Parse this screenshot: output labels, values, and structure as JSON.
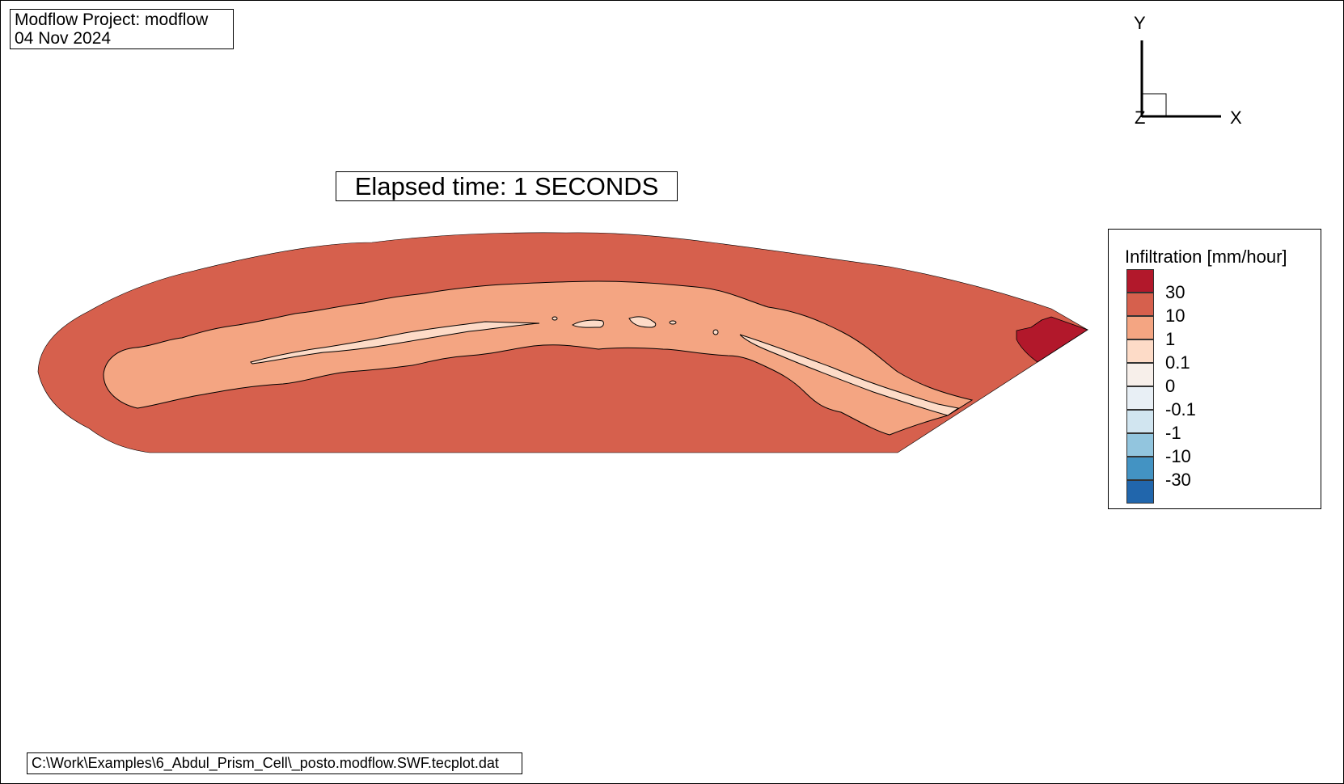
{
  "header": {
    "project": "Modflow Project: modflow",
    "date": "04 Nov 2024"
  },
  "elapsed_time": "Elapsed time: 1 SECONDS",
  "file_path": "C:\\Work\\Examples\\6_Abdul_Prism_Cell\\_posto.modflow.SWF.tecplot.dat",
  "axes": {
    "x": "X",
    "y": "Y",
    "z": "Z"
  },
  "legend": {
    "title": "Infiltration [mm/hour]",
    "levels": [
      {
        "label": "30",
        "color": "#b2182b"
      },
      {
        "label": "10",
        "color": "#d6604d"
      },
      {
        "label": "1",
        "color": "#f4a582"
      },
      {
        "label": "0.1",
        "color": "#fddbc7"
      },
      {
        "label": "0",
        "color": "#f7efea"
      },
      {
        "label": "-0.1",
        "color": "#e8eff5"
      },
      {
        "label": "-1",
        "color": "#d1e5f0"
      },
      {
        "label": "-10",
        "color": "#92c5de"
      },
      {
        "label": "-30",
        "color": "#4393c3"
      },
      {
        "label": "",
        "color": "#2166ac"
      }
    ]
  },
  "map_colors": {
    "high": "#b2182b",
    "medium": "#d6604d",
    "low": "#f4a582",
    "very_low": "#fddbc7"
  }
}
